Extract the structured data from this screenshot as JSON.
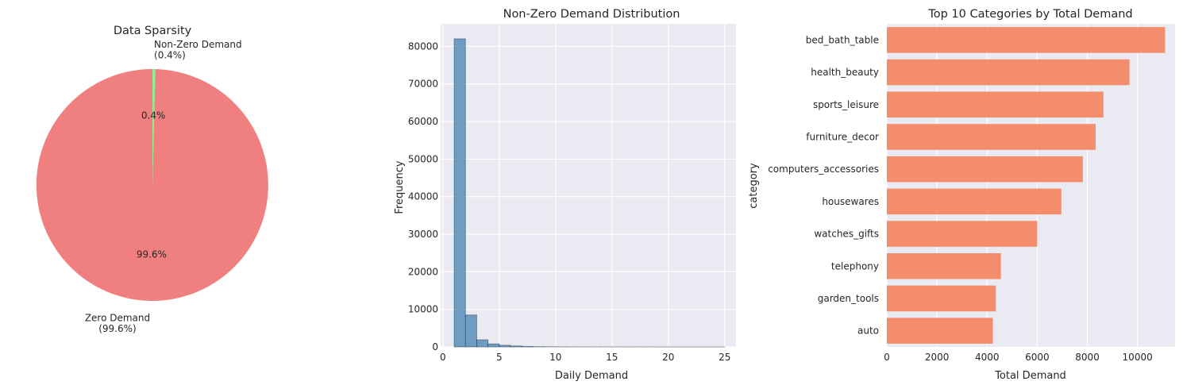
{
  "colors": {
    "axes_bg": "#EAEAF2",
    "grid": "#FFFFFF",
    "pie_zero": "#F08080",
    "pie_nonzero": "#90EE90",
    "hist_bar": "#4682B4",
    "cat_bar": "#F4845F"
  },
  "chart_data": [
    {
      "type": "pie",
      "title": "Data Sparsity",
      "slices": [
        {
          "label": "Zero Demand\n(99.6%)",
          "value": 99.6,
          "pct_label": "99.6%"
        },
        {
          "label": "Non-Zero Demand\n(0.4%)",
          "value": 0.4,
          "pct_label": "0.4%"
        }
      ]
    },
    {
      "type": "bar",
      "subtype": "histogram",
      "title": "Non-Zero Demand Distribution",
      "xlabel": "Daily Demand",
      "ylabel": "Frequency",
      "xlim": [
        -0.2,
        26
      ],
      "ylim": [
        0,
        86000
      ],
      "xticks": [
        0,
        5,
        10,
        15,
        20,
        25
      ],
      "yticks": [
        0,
        10000,
        20000,
        30000,
        40000,
        50000,
        60000,
        70000,
        80000
      ],
      "grid": true,
      "bins": [
        {
          "x0": 1.0,
          "x1": 2.0,
          "count": 82000
        },
        {
          "x0": 2.0,
          "x1": 3.0,
          "count": 8500
        },
        {
          "x0": 3.0,
          "x1": 4.0,
          "count": 1900
        },
        {
          "x0": 4.0,
          "x1": 5.0,
          "count": 800
        },
        {
          "x0": 5.0,
          "x1": 6.0,
          "count": 450
        },
        {
          "x0": 6.0,
          "x1": 7.0,
          "count": 250
        },
        {
          "x0": 7.0,
          "x1": 8.0,
          "count": 130
        },
        {
          "x0": 8.0,
          "x1": 9.0,
          "count": 70
        },
        {
          "x0": 9.0,
          "x1": 10.0,
          "count": 40
        },
        {
          "x0": 10.0,
          "x1": 11.0,
          "count": 25
        },
        {
          "x0": 11.0,
          "x1": 12.0,
          "count": 15
        },
        {
          "x0": 12.0,
          "x1": 13.0,
          "count": 10
        },
        {
          "x0": 13.0,
          "x1": 14.0,
          "count": 8
        },
        {
          "x0": 14.0,
          "x1": 15.0,
          "count": 5
        },
        {
          "x0": 15.0,
          "x1": 16.0,
          "count": 4
        },
        {
          "x0": 16.0,
          "x1": 17.0,
          "count": 3
        },
        {
          "x0": 17.0,
          "x1": 18.0,
          "count": 2
        },
        {
          "x0": 18.0,
          "x1": 19.0,
          "count": 2
        },
        {
          "x0": 19.0,
          "x1": 20.0,
          "count": 1
        },
        {
          "x0": 20.0,
          "x1": 21.0,
          "count": 1
        },
        {
          "x0": 21.0,
          "x1": 22.0,
          "count": 1
        },
        {
          "x0": 22.0,
          "x1": 23.0,
          "count": 1
        },
        {
          "x0": 23.0,
          "x1": 24.0,
          "count": 1
        },
        {
          "x0": 24.0,
          "x1": 25.0,
          "count": 1
        }
      ]
    },
    {
      "type": "bar",
      "orientation": "horizontal",
      "title": "Top 10 Categories by Total Demand",
      "xlabel": "Total Demand",
      "ylabel": "category",
      "xlim": [
        0,
        11500
      ],
      "xticks": [
        0,
        2000,
        4000,
        6000,
        8000,
        10000
      ],
      "grid": true,
      "categories": [
        "bed_bath_table",
        "health_beauty",
        "sports_leisure",
        "furniture_decor",
        "computers_accessories",
        "housewares",
        "watches_gifts",
        "telephony",
        "garden_tools",
        "auto"
      ],
      "values": [
        11100,
        9680,
        8640,
        8330,
        7820,
        6960,
        6000,
        4550,
        4350,
        4230
      ]
    }
  ]
}
